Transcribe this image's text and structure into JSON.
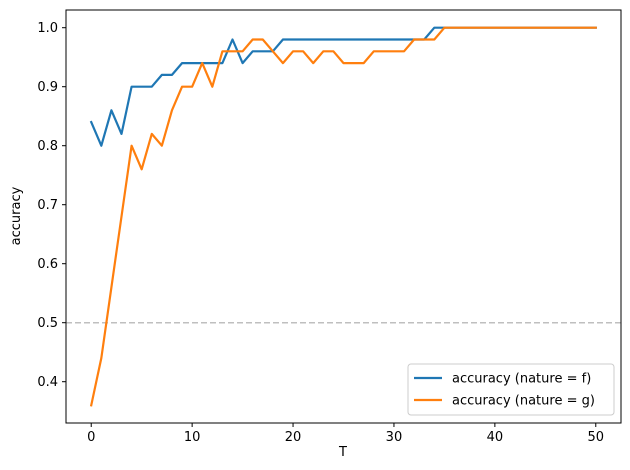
{
  "chart_data": {
    "type": "line",
    "xlabel": "T",
    "ylabel": "accuracy",
    "xlim": [
      -2.5,
      52.5
    ],
    "ylim": [
      0.33,
      1.03
    ],
    "xticks": [
      0,
      10,
      20,
      30,
      40,
      50
    ],
    "yticks": [
      0.4,
      0.5,
      0.6,
      0.7,
      0.8,
      0.9,
      1.0
    ],
    "xtick_labels": [
      "0",
      "10",
      "20",
      "30",
      "40",
      "50"
    ],
    "ytick_labels": [
      "0.4",
      "0.5",
      "0.6",
      "0.7",
      "0.8",
      "0.9",
      "1.0"
    ],
    "reference_line": {
      "y": 0.5,
      "style": "dashed",
      "color": "#bfbfbf"
    },
    "legend": {
      "position": "lower-right"
    },
    "grid": false,
    "x": [
      0,
      1,
      2,
      3,
      4,
      5,
      6,
      7,
      8,
      9,
      10,
      11,
      12,
      13,
      14,
      15,
      16,
      17,
      18,
      19,
      20,
      21,
      22,
      23,
      24,
      25,
      26,
      27,
      28,
      29,
      30,
      31,
      32,
      33,
      34,
      35,
      36,
      37,
      38,
      39,
      40,
      41,
      42,
      43,
      44,
      45,
      46,
      47,
      48,
      49,
      50
    ],
    "series": [
      {
        "name": "accuracy (nature = f)",
        "color": "#1f77b4",
        "values": [
          0.84,
          0.8,
          0.86,
          0.82,
          0.9,
          0.9,
          0.9,
          0.92,
          0.92,
          0.94,
          0.94,
          0.94,
          0.94,
          0.94,
          0.98,
          0.94,
          0.96,
          0.96,
          0.96,
          0.98,
          0.98,
          0.98,
          0.98,
          0.98,
          0.98,
          0.98,
          0.98,
          0.98,
          0.98,
          0.98,
          0.98,
          0.98,
          0.98,
          0.98,
          1.0,
          1.0,
          1.0,
          1.0,
          1.0,
          1.0,
          1.0,
          1.0,
          1.0,
          1.0,
          1.0,
          1.0,
          1.0,
          1.0,
          1.0,
          1.0,
          1.0
        ]
      },
      {
        "name": "accuracy (nature = g)",
        "color": "#ff7f0e",
        "values": [
          0.36,
          0.44,
          0.56,
          0.68,
          0.8,
          0.76,
          0.82,
          0.8,
          0.86,
          0.9,
          0.9,
          0.94,
          0.9,
          0.96,
          0.96,
          0.96,
          0.98,
          0.98,
          0.96,
          0.94,
          0.96,
          0.96,
          0.94,
          0.96,
          0.96,
          0.94,
          0.94,
          0.94,
          0.96,
          0.96,
          0.96,
          0.96,
          0.98,
          0.98,
          0.98,
          1.0,
          1.0,
          1.0,
          1.0,
          1.0,
          1.0,
          1.0,
          1.0,
          1.0,
          1.0,
          1.0,
          1.0,
          1.0,
          1.0,
          1.0,
          1.0
        ]
      }
    ]
  }
}
